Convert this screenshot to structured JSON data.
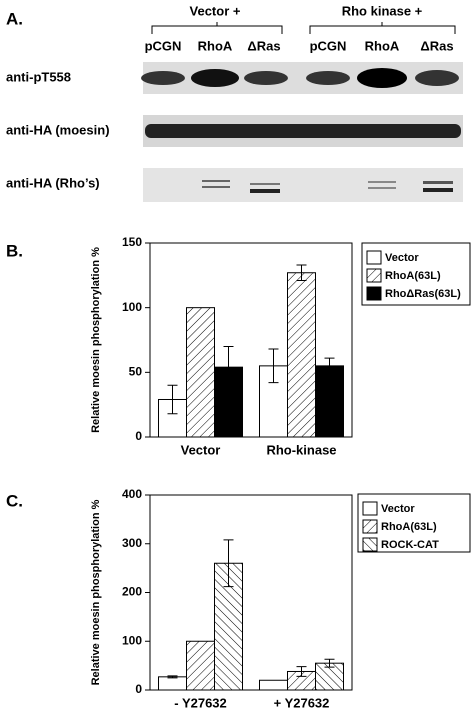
{
  "panel_labels": [
    "A.",
    "B.",
    "C."
  ],
  "panel_a": {
    "groups": [
      "Vector +",
      "Rho kinase +"
    ],
    "lanes": [
      "pCGN",
      "RhoA",
      "ΔRas",
      "pCGN",
      "RhoA",
      "ΔRas"
    ],
    "rows": [
      "anti-pT558",
      "anti-HA (moesin)",
      "anti-HA (Rho’s)"
    ]
  },
  "chart_data": [
    {
      "type": "bar",
      "ylabel": "Relative moesin phosphorylation %",
      "categories": [
        "Vector",
        "Rho-kinase"
      ],
      "ylim": [
        0,
        150
      ],
      "yticks": [
        0,
        50,
        100,
        150
      ],
      "series": [
        {
          "name": "Vector",
          "color": "#ffffff",
          "pattern": "none",
          "values": [
            29,
            55
          ],
          "errors": [
            11,
            13
          ]
        },
        {
          "name": "RhoA(63L)",
          "color": "#ffffff",
          "pattern": "hatch",
          "values": [
            100,
            127
          ],
          "errors": [
            null,
            6
          ]
        },
        {
          "name": "RhoΔRas(63L)",
          "color": "#000000",
          "pattern": "none",
          "values": [
            54,
            55
          ],
          "errors": [
            16,
            6
          ]
        }
      ]
    },
    {
      "type": "bar",
      "ylabel": "Relative moesin phosphorylation %",
      "categories": [
        "- Y27632",
        "+ Y27632"
      ],
      "ylim": [
        0,
        400
      ],
      "yticks": [
        0,
        100,
        200,
        300,
        400
      ],
      "series": [
        {
          "name": "Vector",
          "color": "#ffffff",
          "pattern": "none",
          "values": [
            27,
            20
          ],
          "errors": [
            2,
            null
          ]
        },
        {
          "name": "RhoA(63L)",
          "color": "#ffffff",
          "pattern": "hatch",
          "values": [
            100,
            38
          ],
          "errors": [
            null,
            10
          ]
        },
        {
          "name": "ROCK-CAT",
          "color": "#ffffff",
          "pattern": "backhatch",
          "values": [
            260,
            55
          ],
          "errors": [
            48,
            8
          ]
        }
      ]
    }
  ]
}
